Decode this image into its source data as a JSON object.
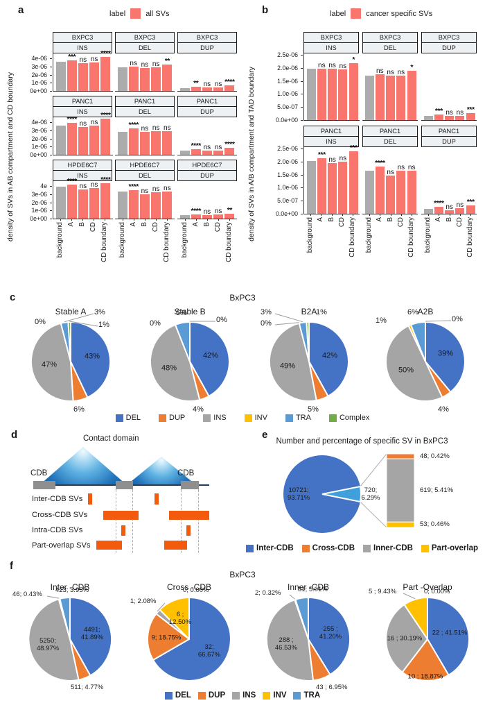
{
  "colors": {
    "bar_sv": "#F8766D",
    "bar_background": "#ACACAC",
    "strip_fill": "#EDF1F4",
    "del": "#4472C4",
    "dup": "#ED7D31",
    "ins": "#A5A5A5",
    "inv": "#FFC000",
    "tra": "#5B9BD5",
    "complex": "#70AD47",
    "expanded_wedge": "#3FA0DC",
    "diagram_orange": "#F25B0D",
    "cdb_gray": "#8F8F8F"
  },
  "chart_data": [
    {
      "letter": "a",
      "type": "bar",
      "legend_label": "label",
      "legend_entry": "all SVs",
      "ylabel": "density of SVs in AB compartment and CD boundary",
      "categories": [
        "background",
        "A",
        "B",
        "CD",
        "CD boundary"
      ],
      "unit": "e-06",
      "ymax": 4.6,
      "rows": [
        {
          "cell": "BXPC3",
          "yticks": [
            {
              "label": "4e-06",
              "v": 4
            },
            {
              "label": "3e-06",
              "v": 3
            },
            {
              "label": "2e-06",
              "v": 2
            },
            {
              "label": "1e-06",
              "v": 1
            },
            {
              "label": "0e+00",
              "v": 0
            }
          ],
          "facets": [
            {
              "sv": "INS",
              "values": [
                3.6,
                3.75,
                3.45,
                3.5,
                4.15
              ],
              "sig": [
                "***",
                "ns",
                "ns",
                "****"
              ]
            },
            {
              "sv": "DEL",
              "values": [
                2.9,
                3.0,
                2.85,
                2.9,
                3.25
              ],
              "sig": [
                "ns",
                "ns",
                "ns",
                "**"
              ]
            },
            {
              "sv": "DUP",
              "values": [
                0.35,
                0.5,
                0.42,
                0.45,
                0.7
              ],
              "sig": [
                "**",
                "ns",
                "ns",
                "****"
              ]
            }
          ]
        },
        {
          "cell": "PANC1",
          "yticks": [
            {
              "label": "4e-06",
              "v": 4
            },
            {
              "label": "3e-06",
              "v": 3
            },
            {
              "label": "2e-06",
              "v": 2
            },
            {
              "label": "1e-06",
              "v": 1
            },
            {
              "label": "0e+00",
              "v": 0
            }
          ],
          "facets": [
            {
              "sv": "INS",
              "values": [
                3.6,
                3.9,
                3.4,
                3.55,
                4.4
              ],
              "sig": [
                "****",
                "ns",
                "ns",
                "****"
              ]
            },
            {
              "sv": "DEL",
              "values": [
                2.85,
                3.2,
                2.8,
                2.9,
                2.9
              ],
              "sig": [
                "****",
                "ns",
                "ns",
                "ns"
              ]
            },
            {
              "sv": "DUP",
              "values": [
                0.5,
                0.65,
                0.5,
                0.55,
                0.85
              ],
              "sig": [
                "****",
                "ns",
                "ns",
                "****"
              ]
            }
          ]
        },
        {
          "cell": "HPDE6C7",
          "yticks": [
            {
              "label": "4e",
              "v": 4
            },
            {
              "label": "3e-06",
              "v": 3
            },
            {
              "label": "2e-06",
              "v": 2
            },
            {
              "label": "1e-06",
              "v": 1
            },
            {
              "label": "0e+00",
              "v": 0
            }
          ],
          "facets": [
            {
              "sv": "INS",
              "values": [
                3.9,
                4.15,
                3.55,
                3.75,
                4.35
              ],
              "sig": [
                "****",
                "ns",
                "ns",
                "****"
              ]
            },
            {
              "sv": "DEL",
              "values": [
                3.3,
                3.5,
                2.95,
                3.2,
                3.3
              ],
              "sig": [
                "****",
                "ns",
                "ns",
                "ns"
              ]
            },
            {
              "sv": "DUP",
              "values": [
                0.4,
                0.55,
                0.45,
                0.5,
                0.6
              ],
              "sig": [
                "****",
                "ns",
                "ns",
                "**"
              ]
            }
          ]
        }
      ]
    },
    {
      "letter": "b",
      "type": "bar",
      "legend_label": "label",
      "legend_entry": "cancer specific SVs",
      "ylabel": "density of SVs in A/B compartment and TAD boundary",
      "categories": [
        "background",
        "A",
        "B",
        "CD",
        "CD boundary"
      ],
      "unit": "e-06",
      "ymax": 2.55,
      "rows": [
        {
          "cell": "BXPC3",
          "yticks": [
            {
              "label": "2.5e-06",
              "v": 2.5
            },
            {
              "label": "2.0e-06",
              "v": 2
            },
            {
              "label": "1.5e-06",
              "v": 1.5
            },
            {
              "label": "1.0e-06",
              "v": 1
            },
            {
              "label": "5.0e-07",
              "v": 0.5
            },
            {
              "label": "0.0e+00",
              "v": 0
            }
          ],
          "facets": [
            {
              "sv": "INS",
              "values": [
                1.97,
                1.97,
                1.97,
                1.95,
                2.17
              ],
              "sig": [
                "ns",
                "ns",
                "ns",
                "*"
              ]
            },
            {
              "sv": "DEL",
              "values": [
                1.7,
                1.75,
                1.7,
                1.7,
                1.9
              ],
              "sig": [
                "ns",
                "ns",
                "ns",
                "*"
              ]
            },
            {
              "sv": "DUP",
              "values": [
                0.17,
                0.21,
                0.15,
                0.16,
                0.28
              ],
              "sig": [
                "***",
                "ns",
                "ns",
                "***"
              ]
            }
          ]
        },
        {
          "cell": "PANC1",
          "yticks": [
            {
              "label": "2.5e-06",
              "v": 2.5
            },
            {
              "label": "2.0e-06",
              "v": 2
            },
            {
              "label": "1.5e-06",
              "v": 1.5
            },
            {
              "label": "1.0e-06",
              "v": 1
            },
            {
              "label": "5.0e-07",
              "v": 0.5
            },
            {
              "label": "0.0e+00",
              "v": 0
            }
          ],
          "facets": [
            {
              "sv": "INS",
              "values": [
                2.02,
                2.12,
                1.93,
                2.0,
                2.38
              ],
              "sig": [
                "***",
                "ns",
                "ns",
                "***"
              ]
            },
            {
              "sv": "DEL",
              "values": [
                1.65,
                1.82,
                1.45,
                1.65,
                1.65
              ],
              "sig": [
                "****",
                "ns",
                "ns",
                "ns"
              ]
            },
            {
              "sv": "DUP",
              "values": [
                0.2,
                0.28,
                0.13,
                0.22,
                0.33
              ],
              "sig": [
                "****",
                "ns",
                "ns",
                "***"
              ]
            }
          ]
        }
      ]
    },
    {
      "letter": "c",
      "type": "pie-grid",
      "suptitle": "BxPC3",
      "order": [
        "DEL",
        "DUP",
        "INS",
        "INV",
        "TRA",
        "Complex"
      ],
      "legend": [
        {
          "label": "DEL",
          "color": "#4472C4"
        },
        {
          "label": "DUP",
          "color": "#ED7D31"
        },
        {
          "label": "INS",
          "color": "#A5A5A5"
        },
        {
          "label": "INV",
          "color": "#FFC000"
        },
        {
          "label": "TRA",
          "color": "#5B9BD5"
        },
        {
          "label": "Complex",
          "color": "#70AD47"
        }
      ],
      "pies": [
        {
          "title": "Stable A",
          "values": [
            43,
            6,
            47,
            0,
            3,
            1
          ],
          "inside": [
            {
              "slice": "DEL",
              "text": "43%"
            },
            {
              "slice": "INS",
              "text": "47%"
            }
          ],
          "outside": [
            {
              "text": "0%",
              "x": 30,
              "y": 16
            },
            {
              "text": "3%",
              "x": 116,
              "y": 2,
              "leader": "TRA"
            },
            {
              "text": "1%",
              "x": 122,
              "y": 20,
              "leader": "Complex"
            },
            {
              "text": "6%",
              "x": 86,
              "y": 142
            }
          ]
        },
        {
          "title": "Stable B",
          "values": [
            42,
            4,
            48,
            0,
            6,
            0
          ],
          "inside": [
            {
              "slice": "DEL",
              "text": "42%"
            },
            {
              "slice": "INS",
              "text": "48%"
            }
          ],
          "outside": [
            {
              "text": "0%",
              "x": 24,
              "y": 18
            },
            {
              "text": "6%",
              "x": 62,
              "y": 3
            },
            {
              "text": "0%",
              "x": 120,
              "y": 13,
              "leader": "Complex"
            },
            {
              "text": "4%",
              "x": 86,
              "y": 142
            }
          ]
        },
        {
          "title": "B2A",
          "values": [
            42,
            5,
            49,
            0,
            3,
            1
          ],
          "inside": [
            {
              "slice": "DEL",
              "text": "42%"
            },
            {
              "slice": "INS",
              "text": "49%"
            }
          ],
          "outside": [
            {
              "text": "3%",
              "x": 12,
              "y": 2,
              "leader": "TRA"
            },
            {
              "text": "0%",
              "x": 12,
              "y": 18,
              "leader": "INV"
            },
            {
              "text": "1%",
              "x": 92,
              "y": 2
            },
            {
              "text": "5%",
              "x": 80,
              "y": 142
            }
          ]
        },
        {
          "title": "A2B",
          "values": [
            39,
            4,
            50,
            1,
            6,
            0
          ],
          "inside": [
            {
              "slice": "DEL",
              "text": "39%"
            },
            {
              "slice": "INS",
              "text": "50%"
            }
          ],
          "outside": [
            {
              "text": "1%",
              "x": 10,
              "y": 14
            },
            {
              "text": "6%",
              "x": 56,
              "y": 2
            },
            {
              "text": "0%",
              "x": 120,
              "y": 12,
              "leader": "Complex"
            },
            {
              "text": "4%",
              "x": 100,
              "y": 142
            }
          ]
        }
      ]
    },
    {
      "letter": "d",
      "type": "diagram",
      "title": "Contact domain",
      "cdb_left": "CDB",
      "cdb_right": "CDB",
      "row_labels": [
        "Inter-CDB SVs",
        "Cross-CDB SVs",
        "Intra-CDB SVs",
        "Part-overlap SVs"
      ]
    },
    {
      "letter": "e",
      "type": "pie-of-bar",
      "title": "Number and percentage of specific SV in BxPC3",
      "main_slice": {
        "name": "Inter-CDB",
        "count": 10721,
        "pct": 93.71,
        "label": "10721;\n93.71%",
        "color": "#4472C4"
      },
      "expanded_slice": {
        "count": 720,
        "pct": 6.29,
        "label": "720;\n6.29%",
        "color": "#3FA0DC"
      },
      "bar_segments": [
        {
          "name": "Cross-CDB",
          "count": 48,
          "pct": 0.42,
          "label": "48; 0.42%",
          "color": "#ED7D31"
        },
        {
          "name": "Inner-CDB",
          "count": 619,
          "pct": 5.41,
          "label": "619; 5.41%",
          "color": "#A5A5A5"
        },
        {
          "name": "Part-overlap",
          "count": 53,
          "pct": 0.46,
          "label": "53; 0.46%",
          "color": "#FFC000"
        }
      ],
      "legend": [
        {
          "label": "Inter-CDB",
          "color": "#4472C4"
        },
        {
          "label": "Cross-CDB",
          "color": "#ED7D31"
        },
        {
          "label": "Inner-CDB",
          "color": "#A5A5A5"
        },
        {
          "label": "Part-overlap",
          "color": "#FFC000"
        }
      ]
    },
    {
      "letter": "f",
      "type": "pie-grid",
      "suptitle": "BxPC3",
      "order": [
        "DEL",
        "DUP",
        "INS",
        "INV",
        "TRA"
      ],
      "legend": [
        {
          "label": "DEL",
          "color": "#4472C4"
        },
        {
          "label": "DUP",
          "color": "#ED7D31"
        },
        {
          "label": "INS",
          "color": "#A5A5A5"
        },
        {
          "label": "INV",
          "color": "#FFC000"
        },
        {
          "label": "TRA",
          "color": "#5B9BD5"
        }
      ],
      "pies": [
        {
          "title": "Inter -CDB",
          "values": [
            4491,
            511,
            5250,
            46,
            423
          ],
          "inside": [
            {
              "slice": "DEL",
              "text": "4491;\n41.89%"
            },
            {
              "slice": "INS",
              "text": "5250;\n48.97%"
            }
          ],
          "outside": [
            {
              "text": "46; 0.43%",
              "x": 2,
              "y": 12,
              "leader": "INV"
            },
            {
              "text": "423; 3.95%",
              "x": 64,
              "y": 6
            },
            {
              "text": "511; 4.77%",
              "x": 86,
              "y": 146
            }
          ]
        },
        {
          "title": "Cross -CDB",
          "values": [
            32,
            9,
            1,
            6,
            0
          ],
          "inside": [
            {
              "slice": "DEL",
              "text": "32;\n66.67%"
            },
            {
              "slice": "DUP",
              "text": "9; 18.75%"
            },
            {
              "slice": "INV",
              "text": "6 ;\n12.50%"
            }
          ],
          "outside": [
            {
              "text": "0; 0.00%",
              "x": 76,
              "y": 6
            },
            {
              "text": "1; 2.08%",
              "x": 0,
              "y": 22,
              "leader": "INS"
            }
          ]
        },
        {
          "title": "Inner -CDB",
          "values": [
            255,
            43,
            288,
            2,
            31
          ],
          "inside": [
            {
              "slice": "DEL",
              "text": "255 ;\n41.20%"
            },
            {
              "slice": "INS",
              "text": "288 ;\n46.53%"
            }
          ],
          "outside": [
            {
              "text": "2; 0.32%",
              "x": 8,
              "y": 10,
              "leader": "INV"
            },
            {
              "text": "31; 5.01%",
              "x": 70,
              "y": 5
            },
            {
              "text": "43 ; 6.95%",
              "x": 96,
              "y": 146
            }
          ]
        },
        {
          "title": "Part -Overlap",
          "values": [
            22,
            10,
            16,
            5,
            0
          ],
          "inside": [
            {
              "slice": "DEL",
              "text": "22 ; 41.51%"
            },
            {
              "slice": "INS",
              "text": "16 ; 30.19%"
            },
            {
              "slice": "DUP",
              "text": "10 ; 18.87%",
              "f": 0.9
            }
          ],
          "outside": [
            {
              "text": "5 ; 9.43%",
              "x": 0,
              "y": 8,
              "leader": "INV"
            },
            {
              "text": "0; 0.00%",
              "x": 80,
              "y": 8
            }
          ]
        }
      ]
    }
  ]
}
